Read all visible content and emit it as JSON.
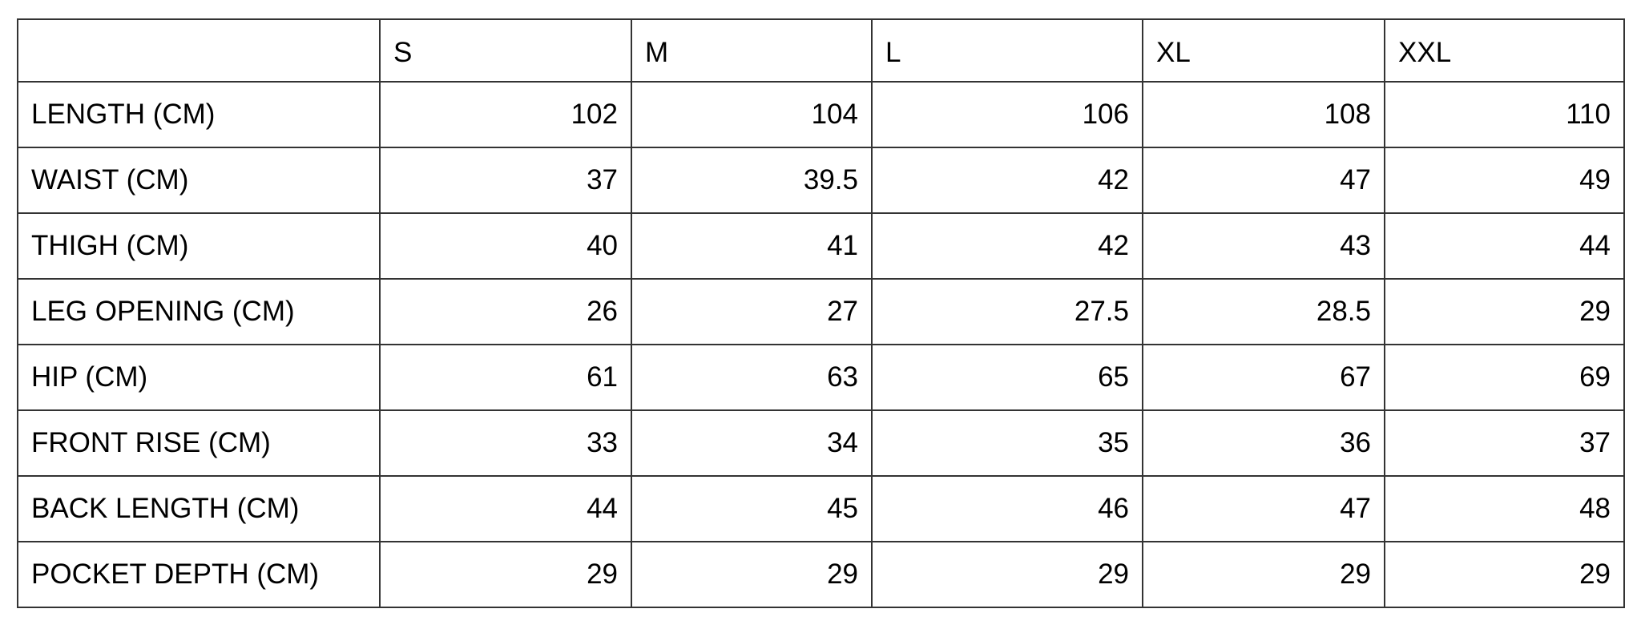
{
  "table": {
    "header": [
      "",
      "S",
      "M",
      "L",
      "XL",
      "XXL"
    ],
    "rows": [
      {
        "label": "LENGTH (CM)",
        "values": [
          "102",
          "104",
          "106",
          "108",
          "110"
        ]
      },
      {
        "label": "WAIST (CM)",
        "values": [
          "37",
          "39.5",
          "42",
          "47",
          "49"
        ]
      },
      {
        "label": "THIGH (CM)",
        "values": [
          "40",
          "41",
          "42",
          "43",
          "44"
        ]
      },
      {
        "label": "LEG OPENING (CM)",
        "values": [
          "26",
          "27",
          "27.5",
          "28.5",
          "29"
        ]
      },
      {
        "label": "HIP (CM)",
        "values": [
          "61",
          "63",
          "65",
          "67",
          "69"
        ]
      },
      {
        "label": "FRONT RISE (CM)",
        "values": [
          "33",
          "34",
          "35",
          "36",
          "37"
        ]
      },
      {
        "label": "BACK LENGTH (CM)",
        "values": [
          "44",
          "45",
          "46",
          "47",
          "48"
        ]
      },
      {
        "label": "POCKET DEPTH (CM)",
        "values": [
          "29",
          "29",
          "29",
          "29",
          "29"
        ]
      }
    ]
  }
}
